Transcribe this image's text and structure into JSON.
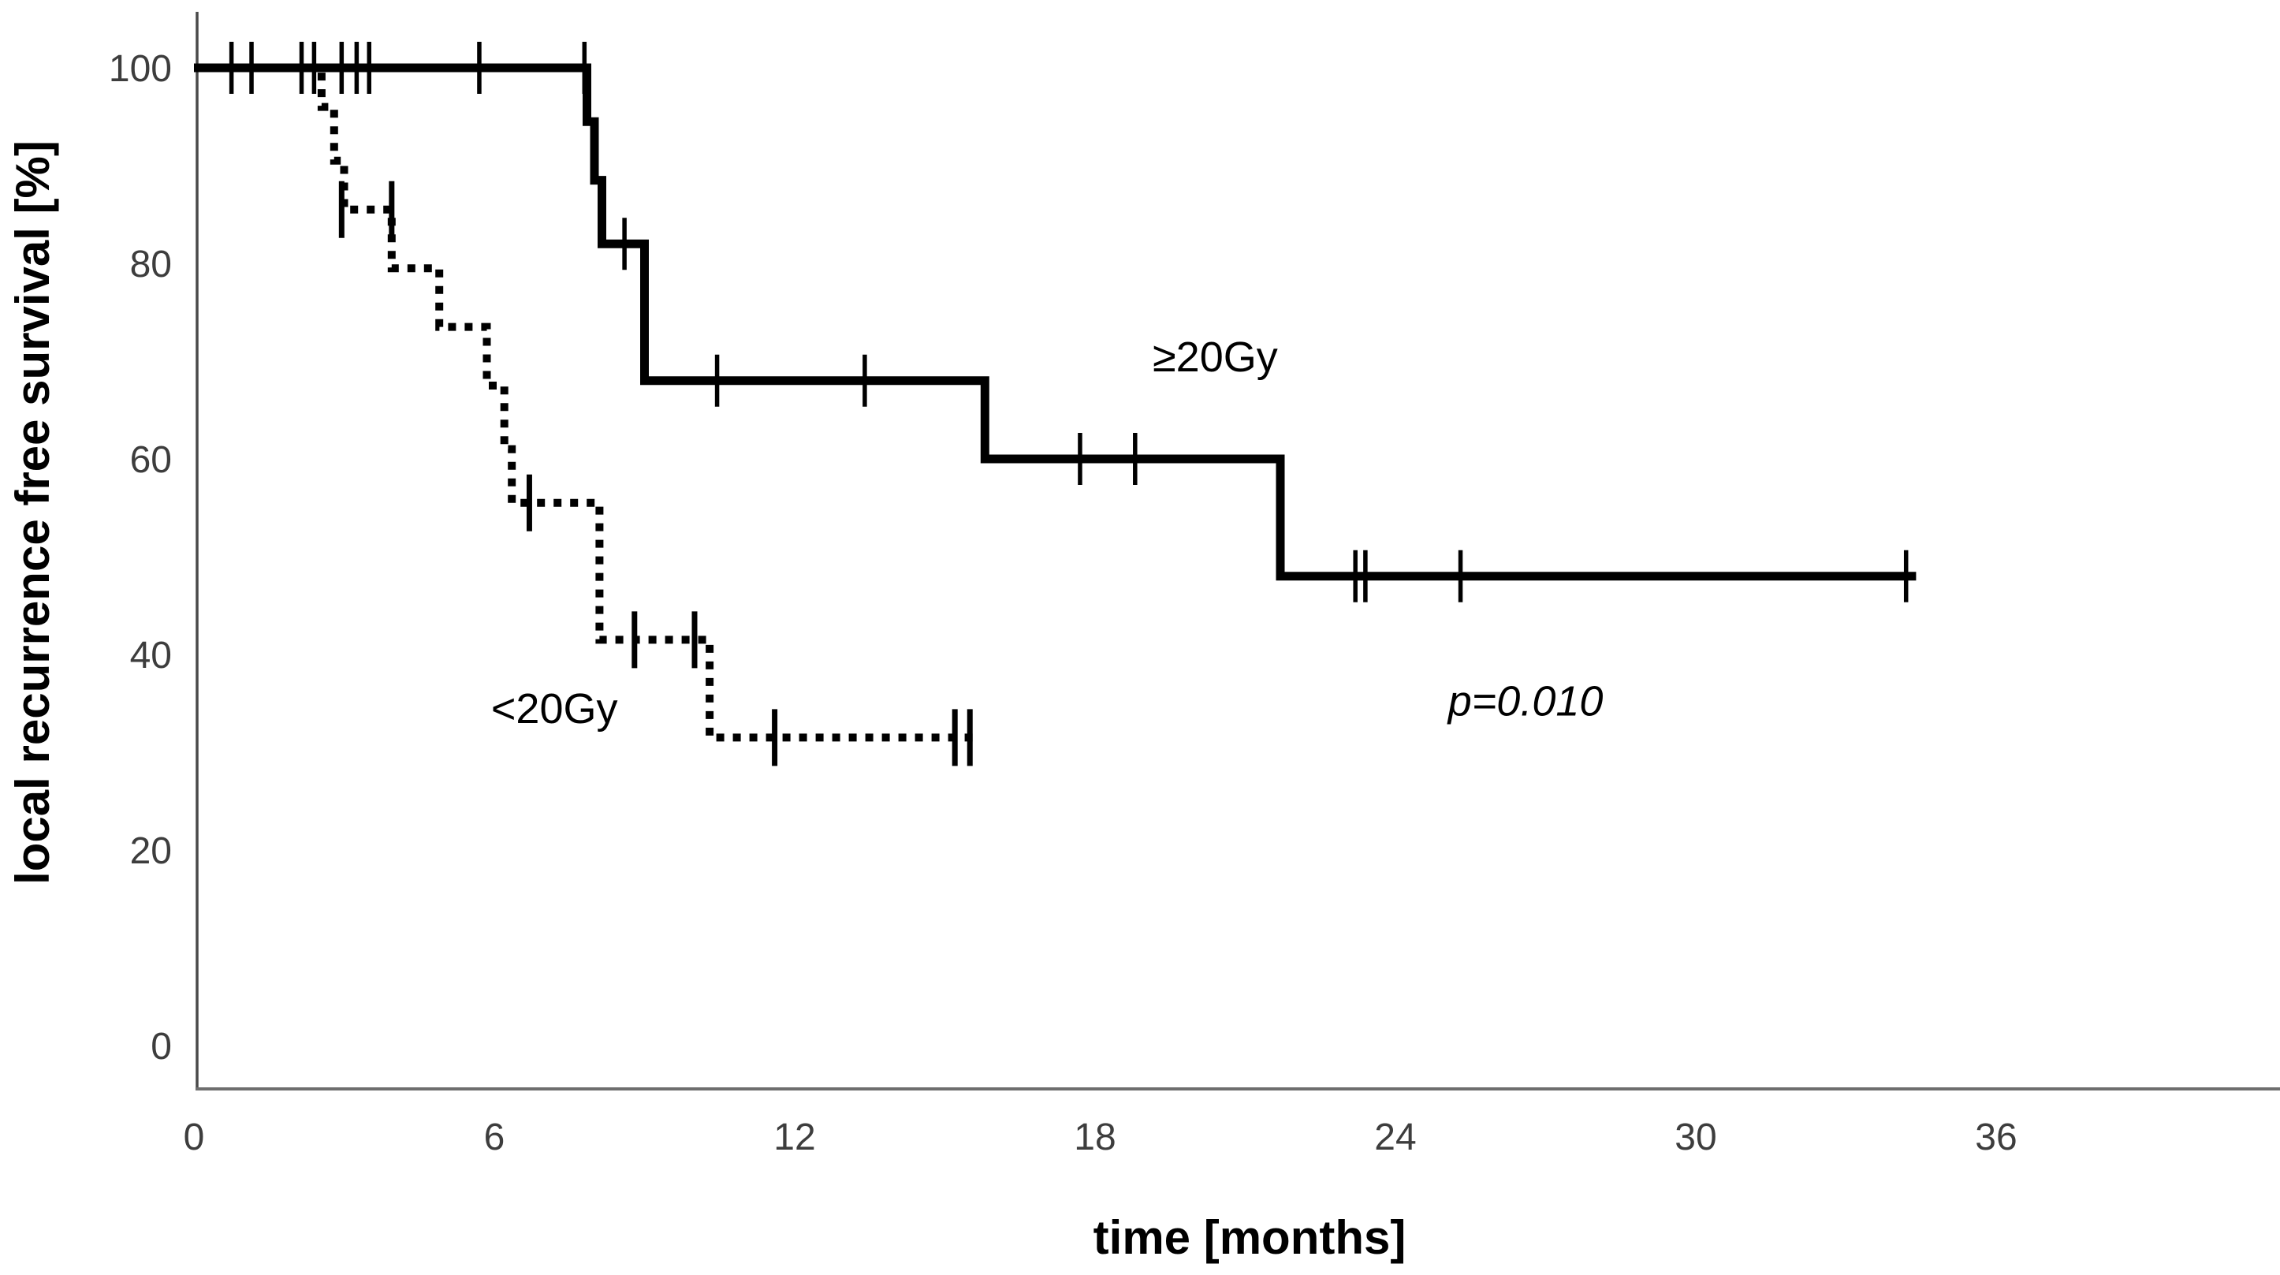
{
  "chart_data": {
    "type": "line",
    "subtype": "kaplan-meier-step",
    "title": "",
    "xlabel": "time [months]",
    "ylabel": "local recurrence free survival [%]",
    "x_ticks": [
      0,
      6,
      12,
      18,
      24,
      30,
      36
    ],
    "y_ticks": [
      0,
      20,
      40,
      60,
      80,
      100
    ],
    "xlim": [
      0,
      41.7
    ],
    "ylim": [
      0,
      100
    ],
    "grid": false,
    "legend_position": "inline-labels",
    "annotations": {
      "p_value": "p=0.010",
      "p_value_pos": {
        "x": 26.6,
        "y": 35.3
      }
    },
    "colors": {
      "curve": "#000000",
      "x_axis": "#6e6e6e",
      "y_axis": "#4a4a4a",
      "tick_label": "#3d3d3d"
    },
    "series": [
      {
        "name": "≥20Gy",
        "line_style": "solid",
        "label_pos": {
          "x": 20.4,
          "y": 70.5
        },
        "steps": [
          [
            0,
            100
          ],
          [
            7.85,
            100
          ],
          [
            7.85,
            94.5
          ],
          [
            8.0,
            94.5
          ],
          [
            8.0,
            88.5
          ],
          [
            8.15,
            88.5
          ],
          [
            8.15,
            82
          ],
          [
            9.0,
            82
          ],
          [
            9.0,
            68
          ],
          [
            15.8,
            68
          ],
          [
            15.8,
            60
          ],
          [
            21.7,
            60
          ],
          [
            21.7,
            48
          ],
          [
            34.4,
            48
          ]
        ],
        "censor_marks": [
          [
            0.75,
            100
          ],
          [
            1.15,
            100
          ],
          [
            2.15,
            100
          ],
          [
            2.4,
            100
          ],
          [
            2.95,
            100
          ],
          [
            3.25,
            100
          ],
          [
            3.5,
            100
          ],
          [
            5.7,
            100
          ],
          [
            7.8,
            100
          ],
          [
            8.6,
            82
          ],
          [
            10.45,
            68
          ],
          [
            13.4,
            68
          ],
          [
            17.7,
            60
          ],
          [
            18.8,
            60
          ],
          [
            23.2,
            48
          ],
          [
            23.4,
            48
          ],
          [
            25.3,
            48
          ],
          [
            34.2,
            48
          ]
        ]
      },
      {
        "name": "<20Gy",
        "line_style": "dotted",
        "label_pos": {
          "x": 7.2,
          "y": 34.5
        },
        "steps": [
          [
            0,
            100
          ],
          [
            2.55,
            100
          ],
          [
            2.55,
            96
          ],
          [
            2.8,
            96
          ],
          [
            2.8,
            90.5
          ],
          [
            3.0,
            90.5
          ],
          [
            3.0,
            85.5
          ],
          [
            3.95,
            85.5
          ],
          [
            3.95,
            79.5
          ],
          [
            4.9,
            79.5
          ],
          [
            4.9,
            73.5
          ],
          [
            5.85,
            73.5
          ],
          [
            5.85,
            67.5
          ],
          [
            6.2,
            67.5
          ],
          [
            6.2,
            61
          ],
          [
            6.35,
            61
          ],
          [
            6.35,
            55.5
          ],
          [
            8.1,
            55.5
          ],
          [
            8.1,
            41.5
          ],
          [
            10.3,
            41.5
          ],
          [
            10.3,
            31.5
          ],
          [
            15.65,
            31.5
          ]
        ],
        "censor_marks": [
          [
            2.95,
            85.5
          ],
          [
            3.95,
            85.5
          ],
          [
            6.7,
            55.5
          ],
          [
            8.8,
            41.5
          ],
          [
            10.0,
            41.5
          ],
          [
            11.6,
            31.5
          ],
          [
            15.2,
            31.5
          ],
          [
            15.5,
            31.5
          ]
        ]
      }
    ]
  }
}
